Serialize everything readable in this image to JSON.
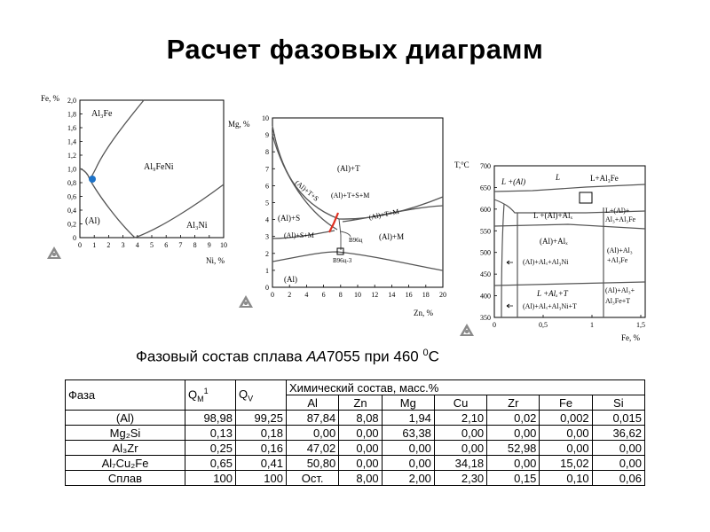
{
  "title": "Расчет фазовых диаграмм",
  "caption": {
    "prefix": "Фазовый состав сплава ",
    "alloy_prefix": "АА",
    "alloy_number": "7055",
    "middle": " при 460 ",
    "degree": "0",
    "unit": "С"
  },
  "diagram1": {
    "ylabel": "Fe, %",
    "xlabel": "Ni, %",
    "yticks": [
      "2,0",
      "1,8",
      "1,6",
      "1,4",
      "1,2",
      "1,0",
      "0,8",
      "0,6",
      "0,4",
      "0,2",
      "0"
    ],
    "xticks": [
      "0",
      "1",
      "2",
      "3",
      "4",
      "5",
      "6",
      "7",
      "8",
      "9",
      "10"
    ],
    "regions": {
      "al3fe": "Al₃Fe",
      "al9feni": "Al₉FeNi",
      "al": "(Al)",
      "al3ni": "Al₃Ni"
    }
  },
  "diagram2": {
    "ylabel": "Mg, %",
    "xlabel": "Zn, %",
    "yticks": [
      "10",
      "9",
      "8",
      "7",
      "6",
      "5",
      "4",
      "3",
      "2",
      "1",
      "0"
    ],
    "xticks": [
      "0",
      "2",
      "4",
      "6",
      "8",
      "10",
      "12",
      "14",
      "16",
      "18",
      "20"
    ],
    "regions": {
      "al_t": "(Al)+T",
      "al_t_s": "(Al)+T+S",
      "al_t_s_m": "(Al)+T+S+M",
      "al_t_m": "(Al)+T+M",
      "al_s": "(Al)+S",
      "al_s_m": "(Al)+S+M",
      "al_m": "(Al)+M",
      "al": "(Al)",
      "b96c": "В96ц",
      "b96c3": "В96ц-3"
    }
  },
  "diagram3": {
    "ylabel": "T,°C",
    "xlabel": "Fe, %",
    "yticks": [
      "700",
      "650",
      "600",
      "550",
      "500",
      "450",
      "400",
      "350"
    ],
    "xticks": [
      "0",
      "0,5",
      "1",
      "1,5"
    ],
    "regions": {
      "l_al": "L +(Al)",
      "l": "L",
      "l_al3fe": "L+Al₃Fe",
      "l_al_alx": "L +(Al)+Alₓ",
      "l_al_al3fe": "L+(Al)+",
      "l_al_al3fe_2": "Al₃+Al₃Fe",
      "al_alx": "(Al)+Alₓ",
      "al_alx_al3ni": "(Al)+Alₓ+Al₃Ni",
      "al_al3_a": "(Al)+Al₃",
      "al_al3_b": "+Al₃Fe",
      "l_alx_t": "L +Alₓ+T",
      "al_alx_al3ni_t": "(Al)+Alₓ+Al₃Ni+T",
      "al_al3_t_a": "(Al)+Al₃+",
      "al_al3_t_b": "Al₃Fe+T"
    }
  },
  "table": {
    "headers": {
      "phase": "Фаза",
      "qm": "Q",
      "qm_sub": "M",
      "qm_sup": "1",
      "qv": "Q",
      "qv_sub": "V",
      "chem": "Химический состав, масс.%"
    },
    "elements": [
      "Al",
      "Zn",
      "Mg",
      "Cu",
      "Zr",
      "Fe",
      "Si"
    ],
    "rows": [
      {
        "phase": "(Al)",
        "qm": "98,98",
        "qv": "99,25",
        "vals": [
          "87,84",
          "8,08",
          "1,94",
          "2,10",
          "0,02",
          "0,002",
          "0,015"
        ]
      },
      {
        "phase": "Mg₂Si",
        "qm": "0,13",
        "qv": "0,18",
        "vals": [
          "0,00",
          "0,00",
          "63,38",
          "0,00",
          "0,00",
          "0,00",
          "36,62"
        ]
      },
      {
        "phase": "Al₃Zr",
        "qm": "0,25",
        "qv": "0,16",
        "vals": [
          "47,02",
          "0,00",
          "0,00",
          "0,00",
          "52,98",
          "0,00",
          "0,00"
        ]
      },
      {
        "phase": "Al₇Cu₂Fe",
        "qm": "0,65",
        "qv": "0,41",
        "vals": [
          "50,80",
          "0,00",
          "0,00",
          "34,18",
          "0,00",
          "15,02",
          "0,00"
        ]
      },
      {
        "phase": "Сплав",
        "qm": "100",
        "qv": "100",
        "vals": [
          "Ост.",
          "8,00",
          "2,00",
          "2,30",
          "0,15",
          "0,10",
          "0,06"
        ]
      }
    ]
  },
  "colors": {
    "marker": "#1e73c8",
    "highlight": "#e03020",
    "logo": "#8a8a8a"
  }
}
